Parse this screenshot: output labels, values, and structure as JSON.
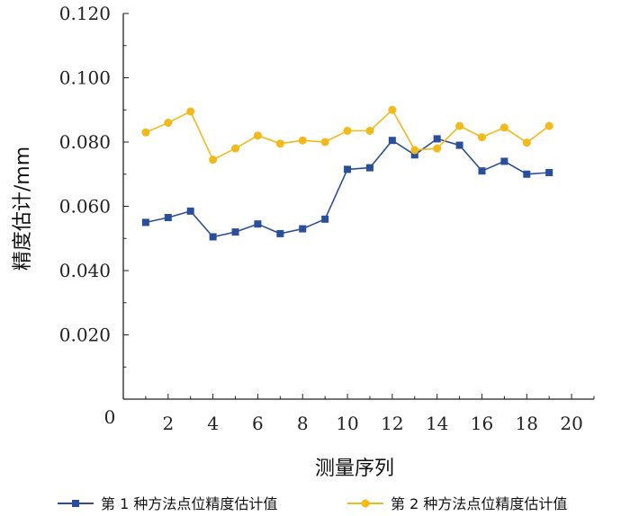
{
  "chart_data": {
    "type": "line",
    "xlabel": "测量序列",
    "ylabel": "精度估计/mm",
    "xlim": [
      0,
      21
    ],
    "ylim": [
      0,
      0.12
    ],
    "xticks": [
      2,
      4,
      6,
      8,
      10,
      12,
      14,
      16,
      18,
      20
    ],
    "xtick_labels": [
      "2",
      "4",
      "6",
      "8",
      "10",
      "12",
      "14",
      "16",
      "18",
      "20"
    ],
    "yticks": [
      0.02,
      0.04,
      0.06,
      0.08,
      0.1,
      0.12
    ],
    "ytick_labels": [
      "0.020",
      "0.040",
      "0.060",
      "0.080",
      "0.100",
      "0.120"
    ],
    "origin_label": "0",
    "legend_position": "bottom",
    "x": [
      1,
      2,
      3,
      4,
      5,
      6,
      7,
      8,
      9,
      10,
      11,
      12,
      13,
      14,
      15,
      16,
      17,
      18,
      19
    ],
    "series": [
      {
        "name": "第 1 种方法点位精度估计值",
        "color": "#2a4f9a",
        "marker": "square",
        "values": [
          0.055,
          0.0565,
          0.0585,
          0.0505,
          0.052,
          0.0545,
          0.0515,
          0.053,
          0.056,
          0.0715,
          0.072,
          0.0805,
          0.076,
          0.081,
          0.079,
          0.071,
          0.074,
          0.07,
          0.0705
        ]
      },
      {
        "name": "第 2 种方法点位精度估计值",
        "color": "#f2b91a",
        "marker": "circle",
        "values": [
          0.083,
          0.086,
          0.0895,
          0.0745,
          0.078,
          0.082,
          0.0795,
          0.0805,
          0.08,
          0.0835,
          0.0835,
          0.09,
          0.0775,
          0.078,
          0.085,
          0.0815,
          0.0845,
          0.0798,
          0.085
        ]
      }
    ]
  }
}
